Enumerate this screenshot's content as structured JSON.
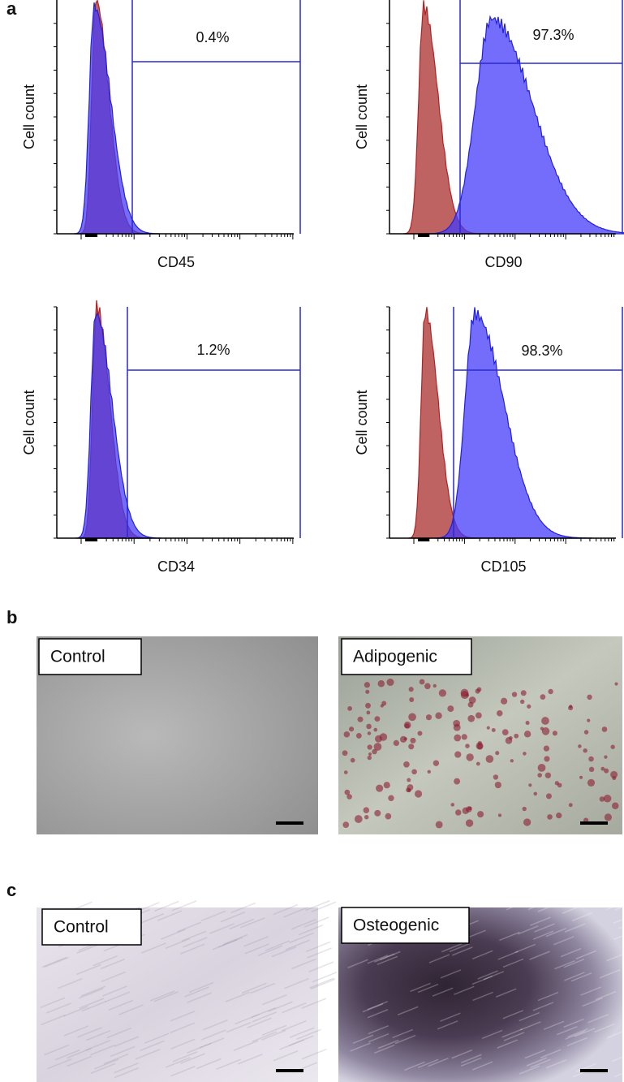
{
  "panels": [
    {
      "label": "a",
      "plots": [
        {
          "y_label": "Cell count",
          "x_label": "CD45",
          "gate_label": "0.4%"
        },
        {
          "y_label": "Cell count",
          "x_label": "CD90",
          "gate_label": "97.3%"
        },
        {
          "y_label": "Cell count",
          "x_label": "CD34",
          "gate_label": "1.2%"
        },
        {
          "y_label": "Cell count",
          "x_label": "CD105",
          "gate_label": "98.3%"
        }
      ]
    },
    {
      "label": "b",
      "images": [
        {
          "label": "Control"
        },
        {
          "label": "Adipogenic"
        }
      ]
    },
    {
      "label": "c",
      "images": [
        {
          "label": "Control"
        },
        {
          "label": "Osteogenic"
        }
      ]
    }
  ]
}
